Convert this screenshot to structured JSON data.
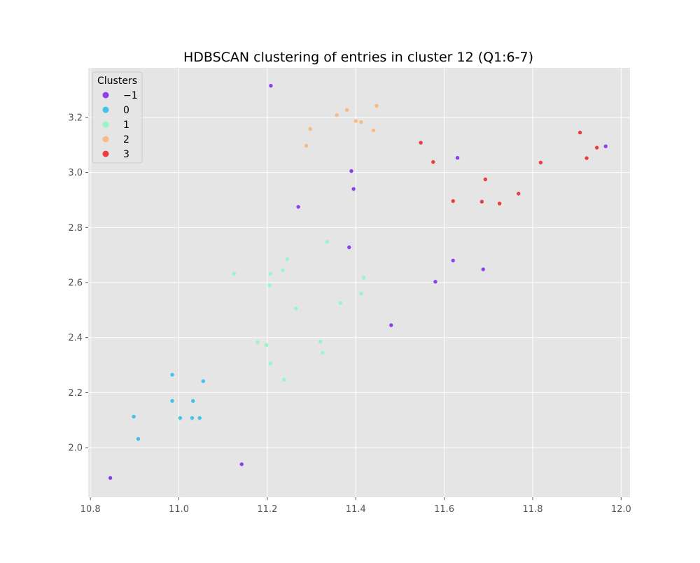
{
  "chart_data": {
    "type": "scatter",
    "title": "HDBSCAN clustering of entries in cluster 12 (Q1:6-7)",
    "xlabel": "",
    "ylabel": "",
    "xlim": [
      10.795,
      12.02
    ],
    "ylim": [
      1.82,
      3.38
    ],
    "x_ticks": [
      10.8,
      11.0,
      11.2,
      11.4,
      11.6,
      11.8,
      12.0
    ],
    "x_tick_labels": [
      "10.8",
      "11.0",
      "11.2",
      "11.4",
      "11.6",
      "11.8",
      "12.0"
    ],
    "y_ticks": [
      2.0,
      2.2,
      2.4,
      2.6,
      2.8,
      3.0,
      3.2
    ],
    "y_tick_labels": [
      "2.0",
      "2.2",
      "2.4",
      "2.6",
      "2.8",
      "3.0",
      "3.2"
    ],
    "grid": true,
    "legend": {
      "title": "Clusters",
      "placement": "top-left",
      "entries": [
        "−1",
        "0",
        "1",
        "2",
        "3"
      ]
    },
    "series": [
      {
        "name": "−1",
        "color": "#8e3fe8",
        "points": [
          [
            10.845,
            1.89
          ],
          [
            11.142,
            1.94
          ],
          [
            11.208,
            3.315
          ],
          [
            11.27,
            2.875
          ],
          [
            11.385,
            2.728
          ],
          [
            11.39,
            3.005
          ],
          [
            11.395,
            2.94
          ],
          [
            11.48,
            2.445
          ],
          [
            11.58,
            2.603
          ],
          [
            11.62,
            2.68
          ],
          [
            11.63,
            3.053
          ],
          [
            11.688,
            2.648
          ],
          [
            11.965,
            3.095
          ]
        ]
      },
      {
        "name": "0",
        "color": "#41c2e6",
        "points": [
          [
            10.898,
            2.113
          ],
          [
            10.908,
            2.032
          ],
          [
            10.985,
            2.265
          ],
          [
            10.985,
            2.17
          ],
          [
            11.003,
            2.108
          ],
          [
            11.03,
            2.108
          ],
          [
            11.032,
            2.17
          ],
          [
            11.047,
            2.108
          ],
          [
            11.055,
            2.242
          ]
        ]
      },
      {
        "name": "1",
        "color": "#96f7c6",
        "points": [
          [
            11.125,
            2.632
          ],
          [
            11.178,
            2.383
          ],
          [
            11.198,
            2.373
          ],
          [
            11.205,
            2.59
          ],
          [
            11.207,
            2.632
          ],
          [
            11.207,
            2.306
          ],
          [
            11.235,
            2.645
          ],
          [
            11.238,
            2.247
          ],
          [
            11.245,
            2.685
          ],
          [
            11.265,
            2.506
          ],
          [
            11.32,
            2.385
          ],
          [
            11.325,
            2.345
          ],
          [
            11.335,
            2.748
          ],
          [
            11.365,
            2.526
          ],
          [
            11.412,
            2.56
          ],
          [
            11.418,
            2.618
          ]
        ]
      },
      {
        "name": "2",
        "color": "#f7bb83",
        "points": [
          [
            11.288,
            3.097
          ],
          [
            11.297,
            3.158
          ],
          [
            11.357,
            3.208
          ],
          [
            11.38,
            3.227
          ],
          [
            11.4,
            3.187
          ],
          [
            11.412,
            3.183
          ],
          [
            11.44,
            3.153
          ],
          [
            11.447,
            3.242
          ]
        ]
      },
      {
        "name": "3",
        "color": "#ec3c3c",
        "points": [
          [
            11.547,
            3.108
          ],
          [
            11.575,
            3.038
          ],
          [
            11.62,
            2.896
          ],
          [
            11.685,
            2.894
          ],
          [
            11.693,
            2.975
          ],
          [
            11.725,
            2.887
          ],
          [
            11.768,
            2.923
          ],
          [
            11.818,
            3.036
          ],
          [
            11.907,
            3.145
          ],
          [
            11.922,
            3.052
          ],
          [
            11.945,
            3.09
          ]
        ]
      }
    ]
  },
  "colors": {
    "axes_background": "#e5e5e5",
    "grid": "#ffffff",
    "tick_label": "#555555"
  }
}
